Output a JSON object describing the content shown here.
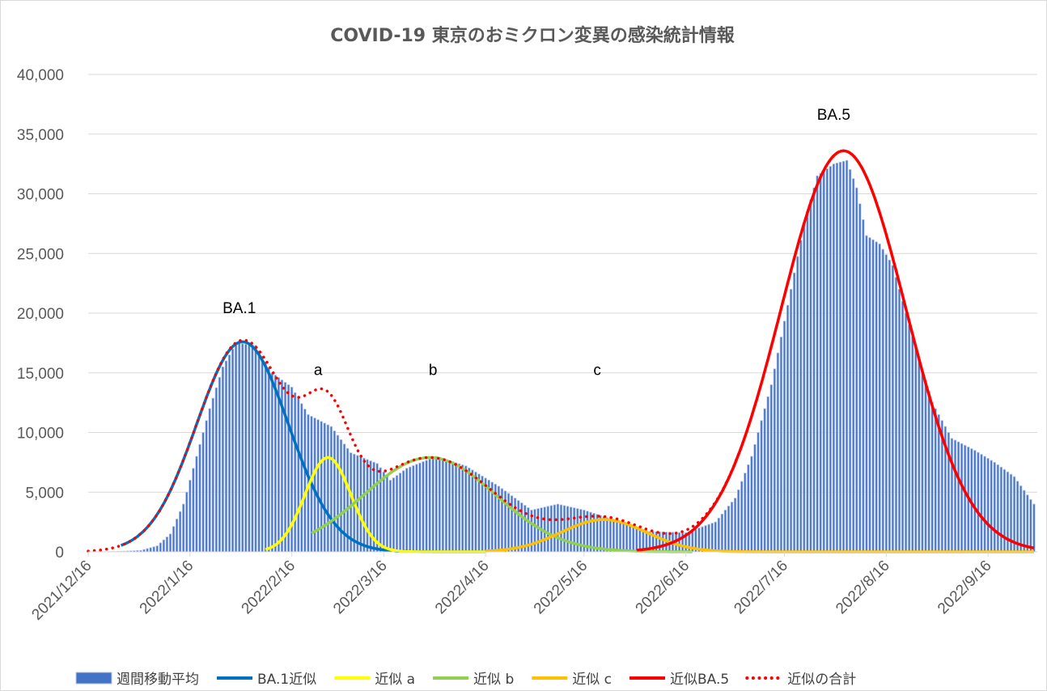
{
  "chart_data": {
    "type": "bar",
    "title": "COVID-19 東京のおミクロン変異の感染統計情報",
    "xlabel": "",
    "ylabel": "",
    "ylim": [
      0,
      40000
    ],
    "yticks": [
      0,
      5000,
      10000,
      15000,
      20000,
      25000,
      30000,
      35000,
      40000
    ],
    "ytick_labels": [
      "0",
      "5,000",
      "10,000",
      "15,000",
      "20,000",
      "25,000",
      "30,000",
      "35,000",
      "40,000"
    ],
    "x_start": "2021/12/16",
    "x_end": "2022/10/1",
    "xtick_labels": [
      "2021/12/16",
      "2022/1/16",
      "2022/2/16",
      "2022/3/16",
      "2022/4/16",
      "2022/5/16",
      "2022/6/16",
      "2022/7/16",
      "2022/8/16",
      "2022/9/16"
    ],
    "grid": true,
    "legend_position": "bottom",
    "bars": {
      "name": "週間移動平均",
      "color": "#4472c4",
      "keypoints": [
        [
          "2021/12/16",
          0
        ],
        [
          "2021/12/25",
          30
        ],
        [
          "2022/1/1",
          120
        ],
        [
          "2022/1/6",
          500
        ],
        [
          "2022/1/10",
          1500
        ],
        [
          "2022/1/14",
          4000
        ],
        [
          "2022/1/18",
          8000
        ],
        [
          "2022/1/22",
          12000
        ],
        [
          "2022/1/26",
          15500
        ],
        [
          "2022/1/30",
          17500
        ],
        [
          "2022/2/5",
          17300
        ],
        [
          "2022/2/10",
          15000
        ],
        [
          "2022/2/16",
          13800
        ],
        [
          "2022/2/21",
          11500
        ],
        [
          "2022/2/28",
          10500
        ],
        [
          "2022/3/6",
          8300
        ],
        [
          "2022/3/14",
          7400
        ],
        [
          "2022/3/18",
          6000
        ],
        [
          "2022/3/23",
          7000
        ],
        [
          "2022/4/1",
          8000
        ],
        [
          "2022/4/10",
          7200
        ],
        [
          "2022/4/20",
          5500
        ],
        [
          "2022/4/30",
          3500
        ],
        [
          "2022/5/8",
          4000
        ],
        [
          "2022/5/16",
          3500
        ],
        [
          "2022/5/26",
          2600
        ],
        [
          "2022/6/5",
          1700
        ],
        [
          "2022/6/16",
          1600
        ],
        [
          "2022/6/25",
          2500
        ],
        [
          "2022/7/1",
          4500
        ],
        [
          "2022/7/6",
          8000
        ],
        [
          "2022/7/12",
          14000
        ],
        [
          "2022/7/18",
          22000
        ],
        [
          "2022/7/22",
          27500
        ],
        [
          "2022/7/26",
          31500
        ],
        [
          "2022/7/31",
          32500
        ],
        [
          "2022/8/4",
          32800
        ],
        [
          "2022/8/7",
          30500
        ],
        [
          "2022/8/10",
          26500
        ],
        [
          "2022/8/14",
          25800
        ],
        [
          "2022/8/18",
          24000
        ],
        [
          "2022/8/24",
          18000
        ],
        [
          "2022/8/30",
          12500
        ],
        [
          "2022/9/5",
          9500
        ],
        [
          "2022/9/12",
          8500
        ],
        [
          "2022/9/18",
          7500
        ],
        [
          "2022/9/24",
          6300
        ],
        [
          "2022/9/30",
          4000
        ]
      ]
    },
    "series": [
      {
        "name": "BA.1近似",
        "color": "#0070c0",
        "style": "solid",
        "peak_date": "2022/2/1",
        "peak": 17600,
        "sigma_days": 14,
        "start": "2021/12/26",
        "end": "2022/4/16"
      },
      {
        "name": "近似 a",
        "color": "#ffff00",
        "style": "solid",
        "peak_date": "2022/2/27",
        "peak": 7900,
        "sigma_days": 7,
        "start": "2022/2/8",
        "end": "2022/4/16"
      },
      {
        "name": "近似 b",
        "color": "#92d050",
        "style": "solid",
        "peak_date": "2022/3/30",
        "peak": 7900,
        "sigma_days": 20,
        "start": "2022/2/22",
        "end": "2022/6/18"
      },
      {
        "name": "近似 c",
        "color": "#ffc000",
        "style": "solid",
        "peak_date": "2022/5/22",
        "peak": 2700,
        "sigma_days": 13,
        "start": "2022/4/16",
        "end": "2022/9/30"
      },
      {
        "name": "近似BA.5",
        "color": "#ff0000",
        "style": "solid",
        "peak_date": "2022/8/3",
        "peak": 33600,
        "sigma_days": 19,
        "start": "2022/6/1",
        "end": "2022/10/1"
      },
      {
        "name": "近似の合計",
        "color": "#ff0000",
        "style": "dotted",
        "derived": "sum of BA.1近似, 近似 a, 近似 b, 近似 c, 近似BA.5"
      }
    ],
    "annotations": [
      {
        "text": "BA.1",
        "date": "2022/1/31",
        "value": 20000
      },
      {
        "text": "a",
        "date": "2022/2/24",
        "value": 14800
      },
      {
        "text": "b",
        "date": "2022/3/31",
        "value": 14800
      },
      {
        "text": "c",
        "date": "2022/5/20",
        "value": 14800
      },
      {
        "text": "BA.5",
        "date": "2022/7/31",
        "value": 36200
      }
    ]
  },
  "legend": {
    "items": [
      {
        "label": "週間移動平均",
        "color": "#4472c4",
        "kind": "box"
      },
      {
        "label": "BA.1近似",
        "color": "#0070c0",
        "kind": "line"
      },
      {
        "label": "近似 a",
        "color": "#ffff00",
        "kind": "line"
      },
      {
        "label": "近似 b",
        "color": "#92d050",
        "kind": "line"
      },
      {
        "label": "近似 c",
        "color": "#ffc000",
        "kind": "line"
      },
      {
        "label": "近似BA.5",
        "color": "#ff0000",
        "kind": "line"
      },
      {
        "label": "近似の合計",
        "color": "#ff0000",
        "kind": "dotted"
      }
    ]
  }
}
